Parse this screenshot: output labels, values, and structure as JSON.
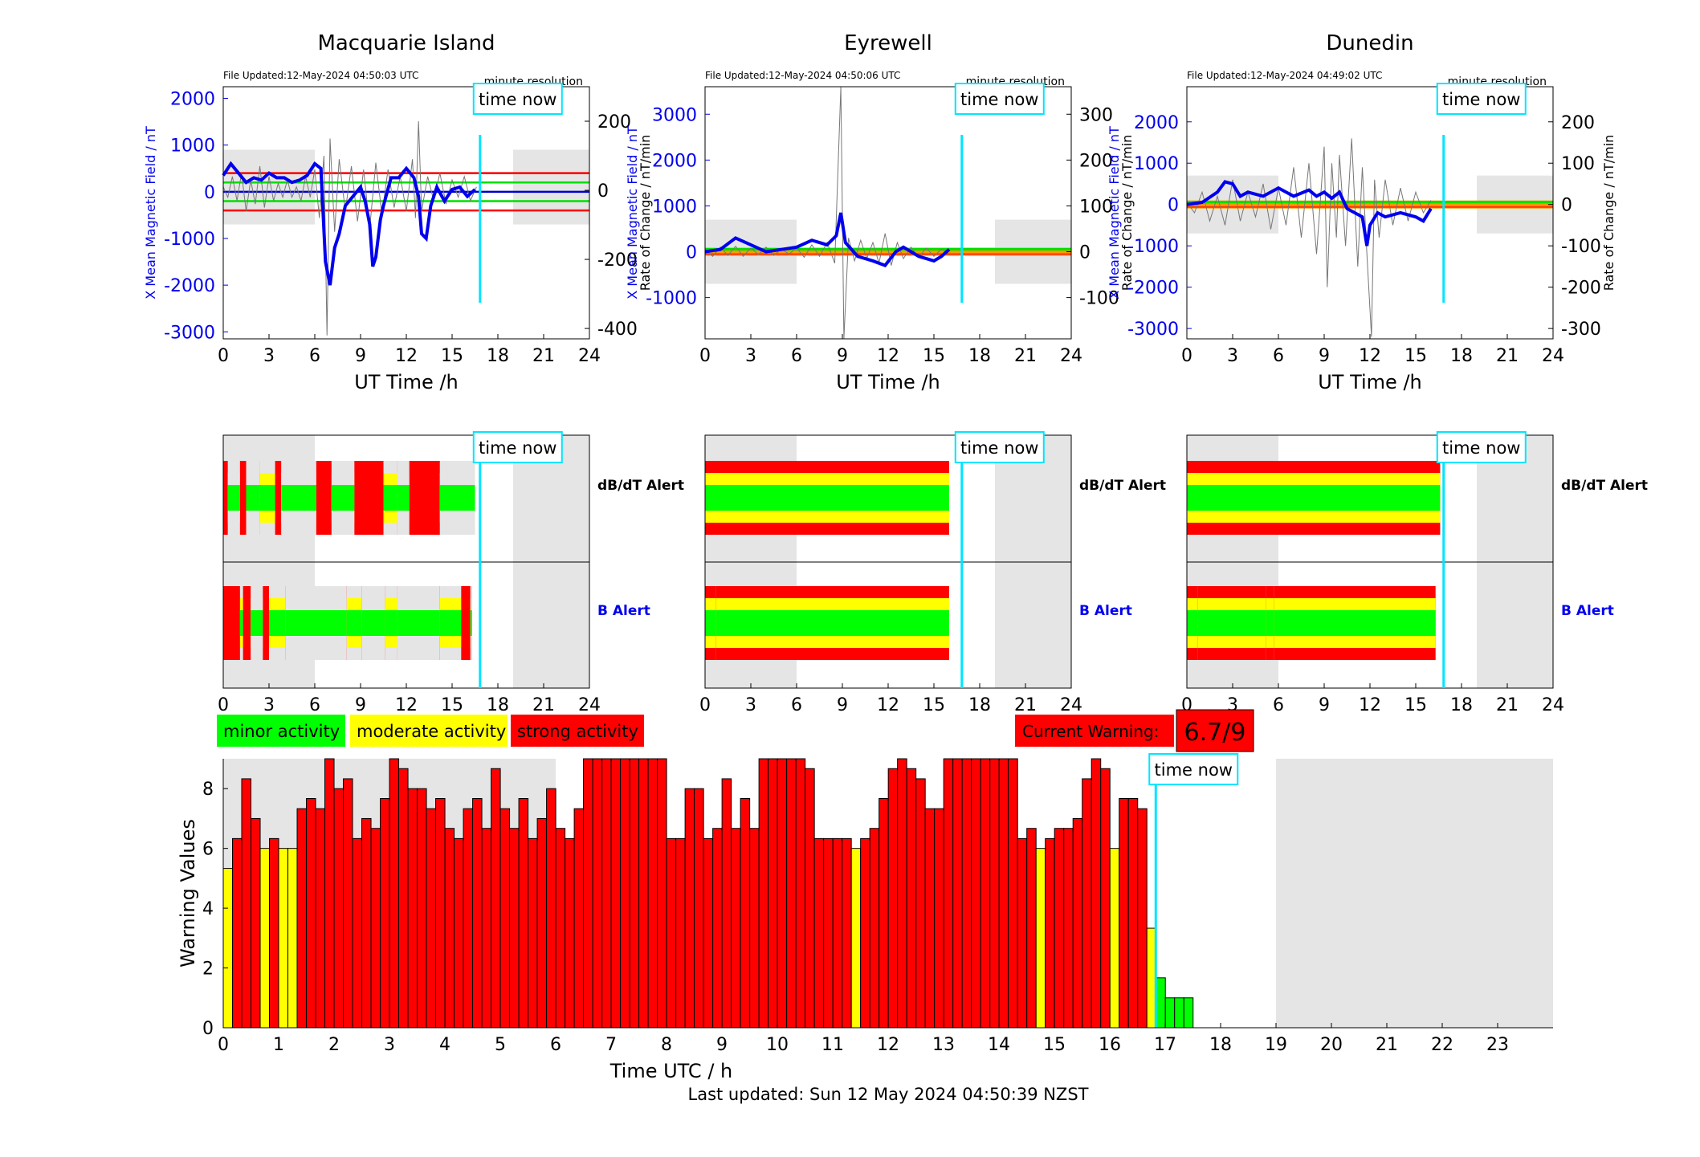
{
  "stations": [
    {
      "name": "Macquarie Island",
      "file_updated": "File Updated:12-May-2024 04:50:03 UTC",
      "resolution": "minute resolution",
      "left_axis_label": "X Mean Magnetic Field / nT",
      "right_axis_label": "Rate of Change / nT/min",
      "left_ticks": [
        2000,
        1000,
        0,
        -1000,
        -2000,
        -3000
      ],
      "left_ylim": [
        -3150,
        2250
      ],
      "right_ticks": [
        200,
        0,
        -200,
        -400
      ],
      "right_ylim": [
        -430,
        300
      ],
      "thresholds": [
        {
          "value": 400,
          "color": "#ff0000"
        },
        {
          "value": 200,
          "color": "#00e000"
        },
        {
          "value": 0,
          "color": "#0000cc"
        },
        {
          "value": -200,
          "color": "#00e000"
        },
        {
          "value": -400,
          "color": "#ff0000"
        }
      ],
      "field_trace": [
        [
          0,
          350
        ],
        [
          0.5,
          600
        ],
        [
          1,
          400
        ],
        [
          1.5,
          200
        ],
        [
          2,
          300
        ],
        [
          2.5,
          250
        ],
        [
          3,
          400
        ],
        [
          3.5,
          300
        ],
        [
          4,
          300
        ],
        [
          4.5,
          200
        ],
        [
          5,
          250
        ],
        [
          5.5,
          350
        ],
        [
          6,
          600
        ],
        [
          6.4,
          500
        ],
        [
          6.7,
          -1500
        ],
        [
          7,
          -2000
        ],
        [
          7.3,
          -1200
        ],
        [
          7.6,
          -900
        ],
        [
          8,
          -300
        ],
        [
          8.5,
          -100
        ],
        [
          9,
          100
        ],
        [
          9.3,
          -200
        ],
        [
          9.6,
          -700
        ],
        [
          9.8,
          -1600
        ],
        [
          10,
          -1400
        ],
        [
          10.3,
          -600
        ],
        [
          10.5,
          -300
        ],
        [
          11,
          300
        ],
        [
          11.5,
          300
        ],
        [
          12,
          500
        ],
        [
          12.5,
          300
        ],
        [
          12.8,
          -100
        ],
        [
          13,
          -900
        ],
        [
          13.3,
          -1000
        ],
        [
          13.6,
          -300
        ],
        [
          14,
          100
        ],
        [
          14.5,
          -200
        ],
        [
          15,
          50
        ],
        [
          15.5,
          100
        ],
        [
          16,
          -100
        ],
        [
          16.5,
          50
        ]
      ],
      "rate_trace": [
        [
          0,
          10
        ],
        [
          0.3,
          -20
        ],
        [
          0.6,
          40
        ],
        [
          0.9,
          -30
        ],
        [
          1.2,
          50
        ],
        [
          1.5,
          -60
        ],
        [
          1.8,
          30
        ],
        [
          2.1,
          -40
        ],
        [
          2.4,
          70
        ],
        [
          2.7,
          -50
        ],
        [
          3,
          40
        ],
        [
          3.3,
          -30
        ],
        [
          3.6,
          20
        ],
        [
          3.9,
          -20
        ],
        [
          4.2,
          30
        ],
        [
          4.5,
          -20
        ],
        [
          4.8,
          10
        ],
        [
          5.1,
          -30
        ],
        [
          5.4,
          40
        ],
        [
          5.7,
          -20
        ],
        [
          6,
          60
        ],
        [
          6.3,
          -80
        ],
        [
          6.6,
          100
        ],
        [
          6.8,
          -420
        ],
        [
          7,
          150
        ],
        [
          7.3,
          -120
        ],
        [
          7.6,
          90
        ],
        [
          8,
          -60
        ],
        [
          8.4,
          70
        ],
        [
          8.8,
          -90
        ],
        [
          9.2,
          60
        ],
        [
          9.6,
          -110
        ],
        [
          10,
          80
        ],
        [
          10.4,
          -70
        ],
        [
          10.8,
          60
        ],
        [
          11.2,
          -50
        ],
        [
          11.6,
          40
        ],
        [
          12,
          -60
        ],
        [
          12.4,
          90
        ],
        [
          12.6,
          -80
        ],
        [
          12.8,
          200
        ],
        [
          13,
          -60
        ],
        [
          13.4,
          40
        ],
        [
          13.8,
          -30
        ],
        [
          14.2,
          50
        ],
        [
          14.6,
          -40
        ],
        [
          15,
          30
        ],
        [
          15.4,
          -20
        ],
        [
          15.8,
          40
        ],
        [
          16.2,
          -30
        ],
        [
          16.6,
          10
        ]
      ]
    },
    {
      "name": "Eyrewell",
      "file_updated": "File Updated:12-May-2024 04:50:06 UTC",
      "resolution": "minute resolution",
      "left_axis_label": "X Mean Magnetic Field / nT",
      "right_axis_label": "Rate of Change / nT/min",
      "left_ticks": [
        3000,
        2000,
        1000,
        0,
        -1000
      ],
      "left_ylim": [
        -1900,
        3600
      ],
      "right_ticks": [
        300,
        200,
        100,
        0,
        -100
      ],
      "right_ylim": [
        -190,
        360
      ],
      "thresholds": [
        {
          "value": 0,
          "color": "#00e000"
        },
        {
          "value": 0,
          "color": "#ff0000"
        }
      ],
      "field_trace": [
        [
          0,
          0
        ],
        [
          1,
          50
        ],
        [
          2,
          300
        ],
        [
          3,
          150
        ],
        [
          4,
          0
        ],
        [
          5,
          50
        ],
        [
          6,
          100
        ],
        [
          7,
          250
        ],
        [
          8,
          150
        ],
        [
          8.6,
          350
        ],
        [
          8.9,
          850
        ],
        [
          9.2,
          200
        ],
        [
          10,
          -100
        ],
        [
          11,
          -200
        ],
        [
          11.8,
          -300
        ],
        [
          12.5,
          0
        ],
        [
          13,
          100
        ],
        [
          14,
          -100
        ],
        [
          14.5,
          -150
        ],
        [
          15,
          -200
        ],
        [
          15.5,
          -100
        ],
        [
          16,
          50
        ]
      ],
      "rate_trace": [
        [
          0,
          5
        ],
        [
          0.5,
          -10
        ],
        [
          1,
          10
        ],
        [
          1.5,
          -8
        ],
        [
          2,
          12
        ],
        [
          2.5,
          -10
        ],
        [
          3,
          8
        ],
        [
          3.5,
          -6
        ],
        [
          4,
          10
        ],
        [
          4.5,
          -8
        ],
        [
          5,
          6
        ],
        [
          5.5,
          -5
        ],
        [
          6,
          8
        ],
        [
          6.5,
          -12
        ],
        [
          7,
          15
        ],
        [
          7.5,
          -10
        ],
        [
          8,
          20
        ],
        [
          8.5,
          -25
        ],
        [
          8.9,
          360
        ],
        [
          9.1,
          -190
        ],
        [
          9.4,
          30
        ],
        [
          9.8,
          -20
        ],
        [
          10.2,
          25
        ],
        [
          10.6,
          -15
        ],
        [
          11,
          20
        ],
        [
          11.4,
          -25
        ],
        [
          11.8,
          40
        ],
        [
          12.2,
          -30
        ],
        [
          12.6,
          20
        ],
        [
          13,
          -15
        ],
        [
          13.5,
          10
        ],
        [
          14,
          -12
        ],
        [
          14.5,
          8
        ],
        [
          15,
          -10
        ],
        [
          15.5,
          6
        ],
        [
          16,
          -5
        ]
      ]
    },
    {
      "name": "Dunedin",
      "file_updated": "File Updated:12-May-2024 04:49:02 UTC",
      "resolution": "minute resolution",
      "left_axis_label": "X Mean Magnetic Field / nT",
      "right_axis_label": "Rate of Change / nT/min",
      "left_ticks": [
        2000,
        1000,
        0,
        -1000,
        -2000,
        -3000
      ],
      "left_ylim": [
        -3250,
        2850
      ],
      "right_ticks": [
        200,
        100,
        0,
        -100,
        -200,
        -300
      ],
      "right_ylim": [
        -325,
        285
      ],
      "thresholds": [
        {
          "value": 0,
          "color": "#00e000"
        },
        {
          "value": 0,
          "color": "#ff0000"
        }
      ],
      "field_trace": [
        [
          0,
          0
        ],
        [
          1,
          50
        ],
        [
          2,
          300
        ],
        [
          2.5,
          550
        ],
        [
          3,
          500
        ],
        [
          3.5,
          200
        ],
        [
          4,
          300
        ],
        [
          5,
          200
        ],
        [
          6,
          400
        ],
        [
          7,
          200
        ],
        [
          8,
          350
        ],
        [
          8.5,
          200
        ],
        [
          9,
          300
        ],
        [
          9.5,
          150
        ],
        [
          10,
          300
        ],
        [
          10.5,
          -100
        ],
        [
          11,
          -200
        ],
        [
          11.5,
          -300
        ],
        [
          11.8,
          -1000
        ],
        [
          12,
          -500
        ],
        [
          12.5,
          -200
        ],
        [
          13,
          -300
        ],
        [
          14,
          -200
        ],
        [
          15,
          -300
        ],
        [
          15.5,
          -400
        ],
        [
          16,
          -100
        ]
      ],
      "rate_trace": [
        [
          0,
          5
        ],
        [
          0.5,
          -20
        ],
        [
          1,
          30
        ],
        [
          1.5,
          -40
        ],
        [
          2,
          20
        ],
        [
          2.5,
          -50
        ],
        [
          3,
          60
        ],
        [
          3.5,
          -40
        ],
        [
          4,
          30
        ],
        [
          4.5,
          -30
        ],
        [
          5,
          50
        ],
        [
          5.5,
          -60
        ],
        [
          6,
          40
        ],
        [
          6.5,
          -50
        ],
        [
          7,
          90
        ],
        [
          7.5,
          -80
        ],
        [
          8,
          100
        ],
        [
          8.5,
          -120
        ],
        [
          9,
          140
        ],
        [
          9.2,
          -200
        ],
        [
          9.5,
          100
        ],
        [
          9.8,
          -80
        ],
        [
          10,
          120
        ],
        [
          10.4,
          -100
        ],
        [
          10.8,
          160
        ],
        [
          11.2,
          -150
        ],
        [
          11.5,
          90
        ],
        [
          11.8,
          -120
        ],
        [
          12.1,
          -320
        ],
        [
          12.3,
          60
        ],
        [
          12.6,
          -80
        ],
        [
          13,
          60
        ],
        [
          13.5,
          -50
        ],
        [
          14,
          40
        ],
        [
          14.5,
          -40
        ],
        [
          15,
          30
        ],
        [
          15.5,
          -20
        ],
        [
          16,
          10
        ]
      ]
    }
  ],
  "alerts": {
    "dbdt_label": "dB/dT Alert",
    "b_label": "B Alert",
    "stations": [
      {
        "dbdt": [
          [
            0,
            0.3,
            "r"
          ],
          [
            0.3,
            1.1,
            "g"
          ],
          [
            1.1,
            1.5,
            "r"
          ],
          [
            1.5,
            2.4,
            "g"
          ],
          [
            2.4,
            3.4,
            "y"
          ],
          [
            3.4,
            3.8,
            "r"
          ],
          [
            3.8,
            6.1,
            "g"
          ],
          [
            6.1,
            7.1,
            "r"
          ],
          [
            7.1,
            8.6,
            "g"
          ],
          [
            8.6,
            10.5,
            "r"
          ],
          [
            10.5,
            11.4,
            "y"
          ],
          [
            11.4,
            12.2,
            "g"
          ],
          [
            12.2,
            14.2,
            "r"
          ],
          [
            14.2,
            16.5,
            "g"
          ]
        ],
        "b": [
          [
            0,
            1.1,
            "r"
          ],
          [
            1.1,
            1.3,
            "y"
          ],
          [
            1.3,
            1.8,
            "r"
          ],
          [
            1.8,
            2.6,
            "g"
          ],
          [
            2.6,
            3.0,
            "r"
          ],
          [
            3.0,
            4.1,
            "y"
          ],
          [
            4.1,
            8.1,
            "g"
          ],
          [
            8.1,
            9.1,
            "y"
          ],
          [
            9.1,
            10.6,
            "g"
          ],
          [
            10.6,
            11.4,
            "y"
          ],
          [
            11.4,
            14.2,
            "g"
          ],
          [
            14.2,
            15.6,
            "y"
          ],
          [
            15.6,
            16.2,
            "r"
          ],
          [
            16.2,
            16.3,
            "g"
          ]
        ]
      },
      {
        "dbdt": [
          [
            0,
            16.0,
            "r"
          ]
        ],
        "b": [
          [
            0,
            0.7,
            "r"
          ],
          [
            0.7,
            16.0,
            "r"
          ]
        ]
      },
      {
        "dbdt": [
          [
            0,
            16.6,
            "r"
          ]
        ],
        "b": [
          [
            0,
            0.7,
            "g"
          ],
          [
            0.7,
            5.2,
            "r"
          ],
          [
            5.2,
            5.7,
            "y"
          ],
          [
            5.7,
            16.3,
            "r"
          ]
        ]
      }
    ]
  },
  "legend": {
    "minor": "minor activity",
    "moderate": "moderate activity",
    "strong": "strong activity",
    "colors": {
      "minor": "#00ff00",
      "moderate": "#ffff00",
      "strong": "#ff0000"
    }
  },
  "current_warning": {
    "label": "Current Warning:",
    "value": "6.7/9"
  },
  "time_now_label": "time now",
  "time_now_hour": 16.83,
  "shade_ranges": [
    [
      0,
      6
    ],
    [
      19,
      24
    ]
  ],
  "chart_data": {
    "type": "bar",
    "xlabel": "Time UTC / h",
    "ylabel": "Warning Values",
    "x_ticks": [
      0,
      1,
      2,
      3,
      4,
      5,
      6,
      7,
      8,
      9,
      10,
      11,
      12,
      13,
      14,
      15,
      16,
      17,
      18,
      19,
      20,
      21,
      22,
      23
    ],
    "xlim": [
      0,
      24
    ],
    "ylim": [
      0,
      9
    ],
    "y_ticks": [
      0,
      2,
      4,
      6,
      8
    ],
    "bin_width_hours": 0.1667,
    "values": [
      5.33,
      6.33,
      8.33,
      7.0,
      6.0,
      6.33,
      6.0,
      6.0,
      7.33,
      7.67,
      7.33,
      9.0,
      8.0,
      8.33,
      6.33,
      7.0,
      6.67,
      7.67,
      9.0,
      8.67,
      8.0,
      8.0,
      7.33,
      7.67,
      6.67,
      6.33,
      7.33,
      7.67,
      6.67,
      8.67,
      7.33,
      6.67,
      7.67,
      6.33,
      7.0,
      8.0,
      6.67,
      6.33,
      7.33,
      9.0,
      9.0,
      9.0,
      9.0,
      9.0,
      9.0,
      9.0,
      9.0,
      9.0,
      6.33,
      6.33,
      8.0,
      8.0,
      6.33,
      6.67,
      8.33,
      6.67,
      7.67,
      6.67,
      9.0,
      9.0,
      9.0,
      9.0,
      9.0,
      8.67,
      6.33,
      6.33,
      6.33,
      6.33,
      6.0,
      6.33,
      6.67,
      7.67,
      8.67,
      9.0,
      8.67,
      8.33,
      7.33,
      7.33,
      9.0,
      9.0,
      9.0,
      9.0,
      9.0,
      9.0,
      9.0,
      9.0,
      6.33,
      6.67,
      6.0,
      6.33,
      6.67,
      6.67,
      7.0,
      8.33,
      9.0,
      8.67,
      6.0,
      7.67,
      7.67,
      7.33,
      3.33,
      1.67,
      1.0,
      1.0,
      1.0
    ]
  },
  "footer": "Last updated: Sun 12 May 2024 04:50:39 NZST"
}
